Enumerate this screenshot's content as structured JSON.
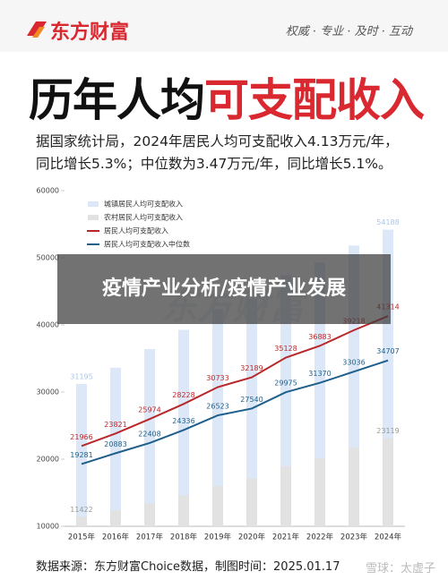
{
  "header": {
    "logo": "东方财富",
    "tagline": "权威 · 专业 · 及时 · 互动",
    "title_parts": [
      "历年人均",
      "可支配收入"
    ],
    "description": [
      "据国家统计局，2024年居民人均可支配收入4.13万元/年，",
      "同比增长5.3%；中位数为3.47万元/年，同比增长5.1%。"
    ]
  },
  "chart_data": {
    "type": "combo",
    "categories": [
      "2015年",
      "2016年",
      "2017年",
      "2018年",
      "2019年",
      "2020年",
      "2021年",
      "2022年",
      "2023年",
      "2024年"
    ],
    "ylim": [
      10000,
      60000
    ],
    "yticks": [
      10000,
      20000,
      30000,
      40000,
      50000,
      60000
    ],
    "watermark": "东方财富",
    "series": [
      {
        "name": "城镇居民人均可支配收入",
        "type": "bar",
        "color": "#dce8f7",
        "label_color": "#a9c6ea",
        "values": [
          31195,
          33616,
          36396,
          39251,
          42359,
          43834,
          47412,
          49283,
          51821,
          54188
        ],
        "value_labels": [
          "31195",
          null,
          null,
          null,
          null,
          null,
          null,
          null,
          null,
          "54188"
        ]
      },
      {
        "name": "农村居民人均可支配收入",
        "type": "bar",
        "color": "#e2e2e2",
        "label_color": "#999999",
        "values": [
          11422,
          12363,
          13432,
          14617,
          16021,
          17131,
          18931,
          20133,
          21691,
          23119
        ],
        "value_labels": [
          "11422",
          null,
          null,
          null,
          null,
          null,
          null,
          null,
          null,
          "23119"
        ]
      },
      {
        "name": "居民人均可支配收入",
        "type": "line",
        "color": "#b8282b",
        "label_color": "#c0282b",
        "values": [
          21966,
          23821,
          25974,
          28228,
          30733,
          32189,
          35128,
          36883,
          39218,
          41314
        ]
      },
      {
        "name": "居民人均可支配收入中位数",
        "type": "line",
        "color": "#1f5f8b",
        "label_color": "#1f5f8b",
        "values": [
          19281,
          20883,
          22408,
          24336,
          26523,
          27540,
          29975,
          31370,
          33036,
          34707
        ]
      }
    ]
  },
  "source": "数据来源：东方财富Choice数据，制图时间：2025.01.17",
  "overlay": "疫情产业分析/疫情产业发展",
  "credit": "雪球：太虚子"
}
